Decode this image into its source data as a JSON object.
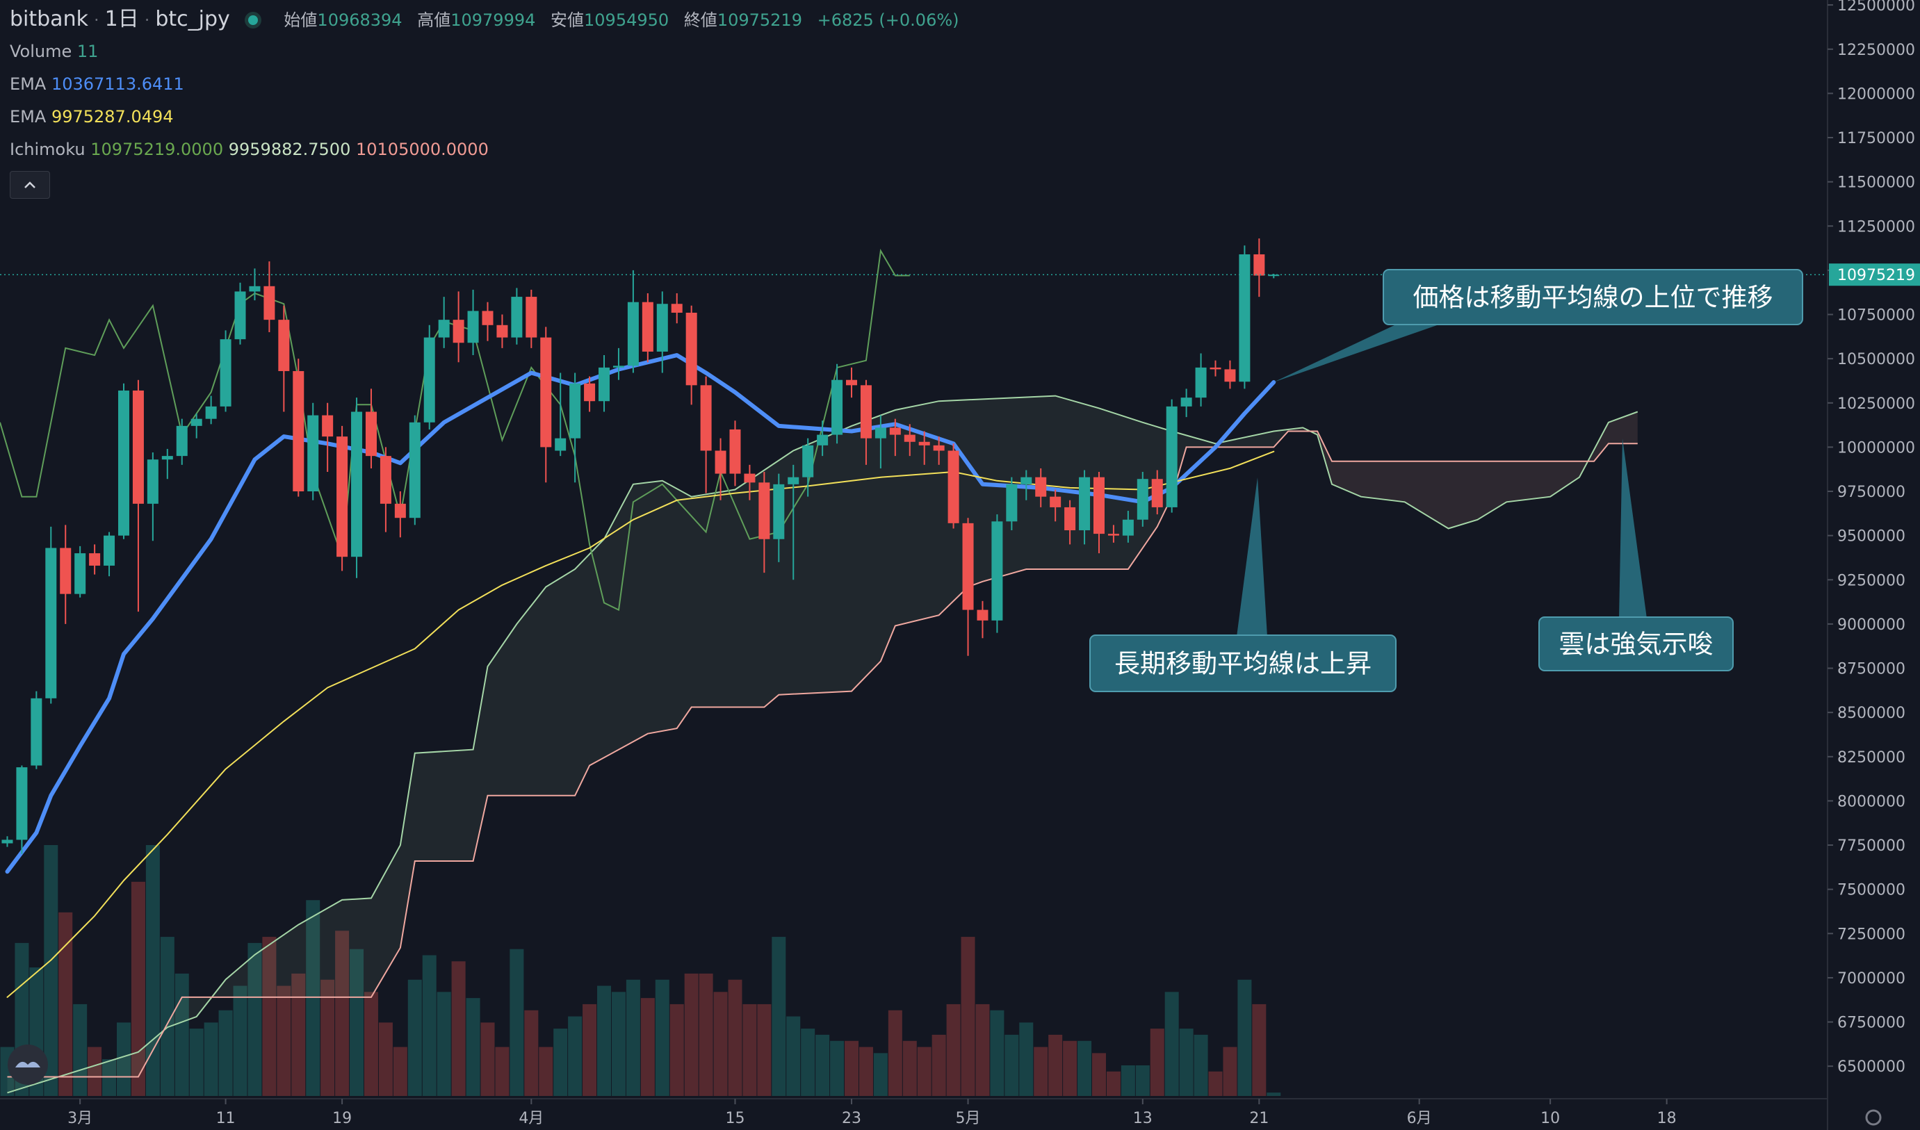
{
  "chart_data": {
    "type": "candlestick",
    "symbol": "bitbank",
    "interval": "1日",
    "pair": "btc_jpy",
    "ohlc_labels": [
      "始値",
      "高値",
      "安値",
      "終値"
    ],
    "change": "+6825 (+0.06%)",
    "volume_label": "Volume",
    "up_color": "#26a69a",
    "down_color": "#ef5350",
    "open": [
      7760000,
      7780000,
      8200000,
      8580000,
      9430000,
      9170000,
      9400000,
      9330000,
      9500000,
      10320000,
      9680000,
      9930000,
      9950000,
      10120000,
      10160000,
      10230000,
      10610000,
      10880000,
      10910000,
      10720000,
      10430000,
      9750000,
      10180000,
      10060000,
      9380000,
      10200000,
      9950000,
      9680000,
      9600000,
      10140000,
      10620000,
      10720000,
      10590000,
      10770000,
      10690000,
      10620000,
      10850000,
      10620000,
      9980000,
      10050000,
      10360000,
      10260000,
      10450000,
      10460000,
      10820000,
      10540000,
      10810000,
      10760000,
      10350000,
      9980000,
      10100000,
      9850000,
      9800000,
      9480000,
      9790000,
      9830000,
      10010000,
      10070000,
      10380000,
      10350000,
      10050000,
      10110000,
      10070000,
      10030000,
      10010000,
      9980000,
      9570000,
      9080000,
      9020000,
      9580000,
      9790000,
      9830000,
      9720000,
      9660000,
      9530000,
      9830000,
      9510000,
      9500000,
      9590000,
      9820000,
      9660000,
      10230000,
      10280000,
      10450000,
      10440000,
      10370000,
      11090000,
      10968394
    ],
    "high": [
      7800000,
      8200000,
      8620000,
      9550000,
      9560000,
      9440000,
      9450000,
      9520000,
      10360000,
      10380000,
      9970000,
      9990000,
      10160000,
      10190000,
      10290000,
      10660000,
      10930000,
      11010000,
      11050000,
      10800000,
      10500000,
      10250000,
      10250000,
      10120000,
      10280000,
      10330000,
      10000000,
      9750000,
      10180000,
      10690000,
      10850000,
      10880000,
      10890000,
      10820000,
      10750000,
      10900000,
      10890000,
      10680000,
      10420000,
      10420000,
      10400000,
      10520000,
      10560000,
      11000000,
      10870000,
      10880000,
      10870000,
      10800000,
      10400000,
      10050000,
      10150000,
      9900000,
      9860000,
      9850000,
      9900000,
      10050000,
      10150000,
      10470000,
      10450000,
      10380000,
      10180000,
      10160000,
      10130000,
      10090000,
      10060000,
      10020000,
      9600000,
      9130000,
      9620000,
      9830000,
      9870000,
      9880000,
      9760000,
      9700000,
      9870000,
      9860000,
      9560000,
      9640000,
      9860000,
      9870000,
      10270000,
      10330000,
      10530000,
      10490000,
      10490000,
      11140000,
      11180000,
      10979994
    ],
    "low": [
      7740000,
      7700000,
      8180000,
      8550000,
      9000000,
      9150000,
      9280000,
      9270000,
      9480000,
      9070000,
      9470000,
      9820000,
      9900000,
      10050000,
      10130000,
      10200000,
      10580000,
      10830000,
      10650000,
      10200000,
      9720000,
      9700000,
      9860000,
      9300000,
      9260000,
      9880000,
      9520000,
      9490000,
      9560000,
      10100000,
      10560000,
      10480000,
      10520000,
      10600000,
      10560000,
      10580000,
      10560000,
      9800000,
      9950000,
      9800000,
      10200000,
      10200000,
      10380000,
      10420000,
      10480000,
      10420000,
      10700000,
      10240000,
      9740000,
      9700000,
      9780000,
      9700000,
      9290000,
      9350000,
      9250000,
      9720000,
      9950000,
      10020000,
      10280000,
      9900000,
      9880000,
      9950000,
      9950000,
      9900000,
      9900000,
      9540000,
      8820000,
      8920000,
      8950000,
      9530000,
      9700000,
      9660000,
      9580000,
      9450000,
      9450000,
      9400000,
      9460000,
      9460000,
      9550000,
      9620000,
      9630000,
      10170000,
      10230000,
      10400000,
      10330000,
      10330000,
      10850000,
      10954950
    ],
    "close": [
      7780000,
      8190000,
      8580000,
      9430000,
      9170000,
      9400000,
      9330000,
      9500000,
      10320000,
      9680000,
      9930000,
      9950000,
      10120000,
      10160000,
      10230000,
      10610000,
      10880000,
      10910000,
      10720000,
      10430000,
      9750000,
      10180000,
      10060000,
      9380000,
      10200000,
      9950000,
      9680000,
      9600000,
      10140000,
      10620000,
      10720000,
      10590000,
      10770000,
      10690000,
      10620000,
      10850000,
      10620000,
      10000000,
      10050000,
      10360000,
      10260000,
      10450000,
      10460000,
      10820000,
      10540000,
      10810000,
      10760000,
      10350000,
      9980000,
      9850000,
      9850000,
      9800000,
      9480000,
      9790000,
      9830000,
      10010000,
      10070000,
      10380000,
      10350000,
      10050000,
      10110000,
      10070000,
      10030000,
      10010000,
      9980000,
      9570000,
      9080000,
      9020000,
      9580000,
      9790000,
      9830000,
      9720000,
      9660000,
      9530000,
      9830000,
      9510000,
      9500000,
      9590000,
      9820000,
      9660000,
      10230000,
      10280000,
      10450000,
      10440000,
      10370000,
      11090000,
      10970000,
      10975219
    ],
    "volume": [
      160,
      500,
      420,
      820,
      600,
      300,
      160,
      120,
      240,
      700,
      820,
      520,
      400,
      220,
      240,
      280,
      360,
      500,
      520,
      360,
      400,
      640,
      380,
      540,
      480,
      340,
      240,
      160,
      380,
      460,
      340,
      440,
      320,
      240,
      160,
      480,
      280,
      160,
      220,
      260,
      300,
      360,
      340,
      380,
      320,
      380,
      300,
      400,
      400,
      340,
      380,
      300,
      300,
      520,
      260,
      220,
      200,
      180,
      180,
      160,
      140,
      280,
      180,
      160,
      200,
      300,
      520,
      300,
      280,
      200,
      240,
      160,
      200,
      180,
      180,
      140,
      80,
      100,
      100,
      220,
      340,
      220,
      200,
      80,
      160,
      380,
      300,
      11
    ],
    "series": [
      {
        "name": "EMA",
        "color": "#4e8ef7",
        "x": [
          0,
          2,
          3,
          5,
          7,
          8,
          10,
          14,
          17,
          19,
          22,
          25,
          27,
          30,
          33,
          36,
          39,
          42,
          46,
          48,
          50,
          53,
          58,
          61,
          65,
          67,
          71,
          75,
          78,
          80,
          83,
          85,
          87
        ],
        "values": [
          7600000,
          7820000,
          8030000,
          8310000,
          8580000,
          8830000,
          9030000,
          9480000,
          9930000,
          10060000,
          10020000,
          9970000,
          9910000,
          10140000,
          10280000,
          10420000,
          10350000,
          10440000,
          10520000,
          10420000,
          10310000,
          10120000,
          10090000,
          10130000,
          10020000,
          9790000,
          9770000,
          9730000,
          9690000,
          9770000,
          10000000,
          10190000,
          10367113.6411
        ]
      },
      {
        "name": "EMA",
        "color": "#f2e05a",
        "x": [
          0,
          3,
          6,
          8,
          11,
          15,
          19,
          22,
          25,
          28,
          31,
          34,
          37,
          40,
          43,
          46,
          50,
          55,
          60,
          65,
          68,
          73,
          78,
          81,
          84,
          87
        ],
        "values": [
          6890000,
          7100000,
          7350000,
          7550000,
          7810000,
          8180000,
          8450000,
          8640000,
          8750000,
          8860000,
          9080000,
          9220000,
          9330000,
          9430000,
          9590000,
          9700000,
          9740000,
          9780000,
          9830000,
          9860000,
          9810000,
          9770000,
          9760000,
          9820000,
          9880000,
          9975287.0494
        ]
      }
    ],
    "ichimoku": {
      "name": "Ichimoku",
      "value_labels": [
        "10975219.0000",
        "9959882.7500",
        "10105000.0000"
      ],
      "lagging": {
        "color": "#5f9e5a",
        "x": [
          -0.5,
          1,
          2,
          4,
          6,
          7,
          8,
          10,
          12,
          14,
          16,
          17,
          19,
          20,
          21,
          23,
          24,
          25,
          27,
          29,
          30,
          32,
          34,
          36,
          38,
          39,
          40,
          41,
          42,
          43,
          45,
          48,
          49,
          51,
          53,
          55,
          57,
          59,
          60,
          61,
          62
        ],
        "values": [
          10140000,
          9720000,
          9720000,
          10560000,
          10520000,
          10720000,
          10560000,
          10800000,
          10070000,
          10310000,
          10810000,
          10870000,
          10810000,
          10380000,
          9850000,
          9380000,
          10240000,
          10240000,
          9610000,
          10570000,
          10710000,
          10660000,
          10040000,
          10450000,
          10240000,
          9950000,
          9450000,
          9120000,
          9080000,
          9690000,
          9790000,
          9520000,
          9860000,
          9480000,
          9520000,
          9790000,
          10450000,
          10490000,
          11110000,
          10970000,
          10970000
        ]
      },
      "span_a": {
        "color": "#a5d6a7",
        "x": [
          0,
          9,
          11,
          13,
          15,
          17,
          20,
          23,
          25,
          27,
          28,
          32,
          33,
          35,
          37,
          39,
          41,
          43,
          45,
          47,
          50,
          54,
          58,
          61,
          64,
          72,
          75,
          78,
          80,
          83,
          87,
          89,
          90,
          91,
          93,
          96,
          98,
          99,
          101,
          103,
          106,
          108,
          110,
          112
        ],
        "values": [
          6350000,
          6580000,
          6720000,
          6780000,
          6990000,
          7130000,
          7300000,
          7440000,
          7450000,
          7750000,
          8270000,
          8290000,
          8760000,
          9000000,
          9210000,
          9310000,
          9480000,
          9790000,
          9810000,
          9720000,
          9760000,
          9980000,
          10120000,
          10210000,
          10260000,
          10290000,
          10220000,
          10140000,
          10090000,
          10020000,
          10090000,
          10110000,
          10070000,
          9790000,
          9720000,
          9690000,
          9590000,
          9540000,
          9590000,
          9690000,
          9720000,
          9830000,
          10140000,
          10200000
        ]
      },
      "span_b": {
        "color": "#f0a8a0",
        "x": [
          0,
          9,
          12,
          25,
          27,
          28,
          32,
          33,
          39,
          40,
          42,
          44,
          46,
          47,
          52,
          53,
          58,
          60,
          61,
          64,
          66,
          67,
          70,
          77,
          79,
          80,
          81,
          87,
          88,
          90,
          91,
          109,
          110,
          112
        ],
        "values": [
          6440000,
          6440000,
          6890000,
          6890000,
          7170000,
          7660000,
          7660000,
          8030000,
          8030000,
          8200000,
          8290000,
          8380000,
          8410000,
          8530000,
          8530000,
          8600000,
          8620000,
          8790000,
          8990000,
          9050000,
          9210000,
          9240000,
          9310000,
          9310000,
          9550000,
          9720000,
          10000000,
          10000000,
          10090000,
          10090000,
          9920000,
          9920000,
          10020000,
          10020000
        ]
      }
    },
    "xlim": [
      -0.5,
      125
    ],
    "xticks": [
      {
        "value": 5,
        "label": "3月"
      },
      {
        "value": 15,
        "label": "11"
      },
      {
        "value": 23,
        "label": "19"
      },
      {
        "value": 36,
        "label": "4月"
      },
      {
        "value": 50,
        "label": "15"
      },
      {
        "value": 58,
        "label": "23"
      },
      {
        "value": 66,
        "label": "5月"
      },
      {
        "value": 78,
        "label": "13"
      },
      {
        "value": 86,
        "label": "21"
      },
      {
        "value": 97,
        "label": "6月"
      },
      {
        "value": 106,
        "label": "10"
      },
      {
        "value": 114,
        "label": "18"
      }
    ],
    "ylim": [
      6320000,
      12528000
    ],
    "yticks": [
      12500000,
      12250000,
      12000000,
      11750000,
      11500000,
      11250000,
      11000000,
      10750000,
      10500000,
      10250000,
      10000000,
      9750000,
      9500000,
      9250000,
      9000000,
      8750000,
      8500000,
      8250000,
      8000000,
      7750000,
      7500000,
      7250000,
      7000000,
      6750000,
      6500000
    ],
    "annotations": [
      {
        "text": "価格は移動平均線の上位で推移"
      },
      {
        "text": "長期移動平均線は上昇"
      },
      {
        "text": "雲は強気示唆"
      }
    ]
  }
}
